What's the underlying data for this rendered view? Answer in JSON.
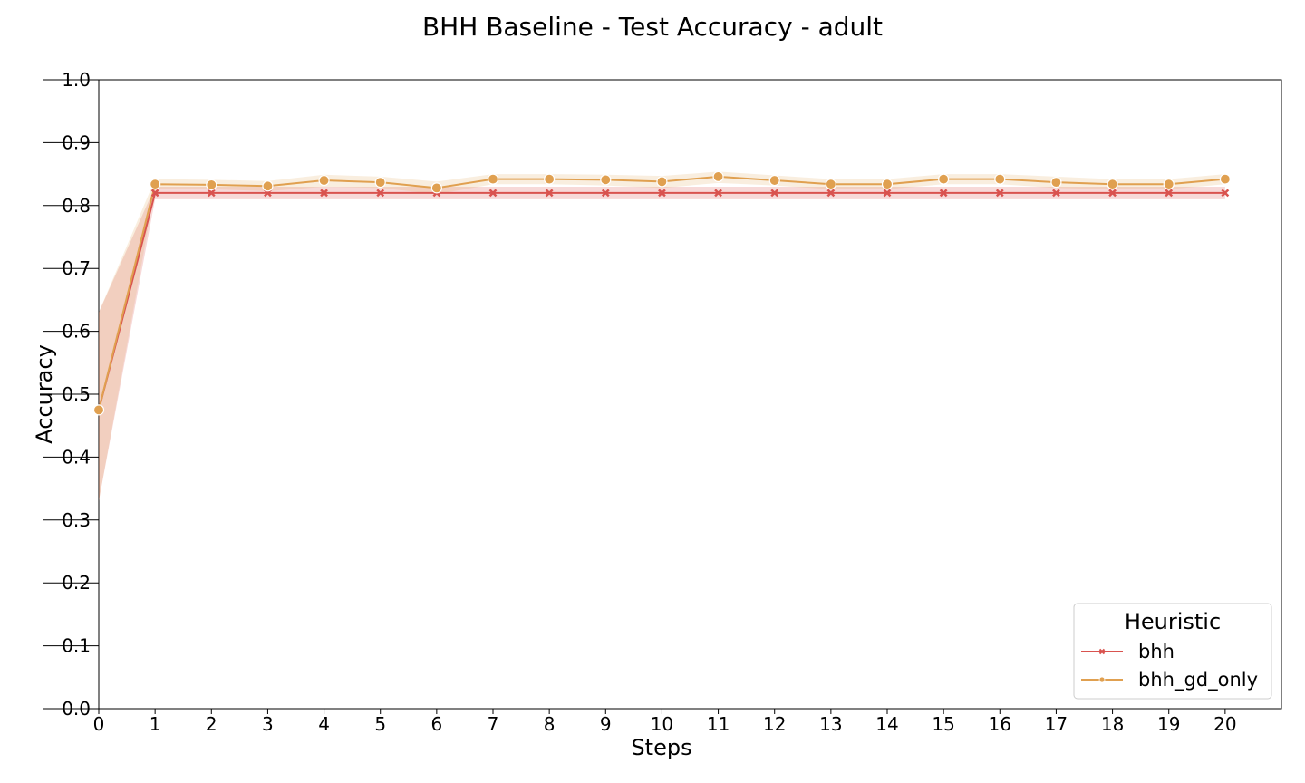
{
  "chart_data": {
    "type": "line",
    "title": "BHH Baseline - Test Accuracy - adult",
    "xlabel": "Steps",
    "ylabel": "Accuracy",
    "x": [
      0,
      1,
      2,
      3,
      4,
      5,
      6,
      7,
      8,
      9,
      10,
      11,
      12,
      13,
      14,
      15,
      16,
      17,
      18,
      19,
      20
    ],
    "xlim": [
      0,
      21
    ],
    "ylim": [
      0.0,
      1.0
    ],
    "x_ticks": [
      "0",
      "1",
      "2",
      "3",
      "4",
      "5",
      "6",
      "7",
      "8",
      "9",
      "10",
      "11",
      "12",
      "13",
      "14",
      "15",
      "16",
      "17",
      "18",
      "19",
      "20"
    ],
    "y_ticks": [
      "0.0",
      "0.1",
      "0.2",
      "0.3",
      "0.4",
      "0.5",
      "0.6",
      "0.7",
      "0.8",
      "0.9",
      "1.0"
    ],
    "grid": false,
    "legend_title": "Heuristic",
    "legend_position": "lower-right",
    "series": [
      {
        "name": "bhh",
        "color": "#d9534f",
        "marker": "x",
        "values": [
          0.475,
          0.82,
          0.82,
          0.82,
          0.82,
          0.82,
          0.82,
          0.82,
          0.82,
          0.82,
          0.82,
          0.82,
          0.82,
          0.82,
          0.82,
          0.82,
          0.82,
          0.82,
          0.82,
          0.82,
          0.82
        ],
        "ci_low": [
          0.33,
          0.81,
          0.81,
          0.81,
          0.81,
          0.81,
          0.81,
          0.81,
          0.81,
          0.81,
          0.81,
          0.81,
          0.81,
          0.81,
          0.81,
          0.81,
          0.81,
          0.81,
          0.81,
          0.81,
          0.81
        ],
        "ci_high": [
          0.63,
          0.83,
          0.83,
          0.83,
          0.83,
          0.83,
          0.83,
          0.83,
          0.83,
          0.83,
          0.83,
          0.83,
          0.83,
          0.83,
          0.83,
          0.83,
          0.83,
          0.83,
          0.83,
          0.83,
          0.83
        ]
      },
      {
        "name": "bhh_gd_only",
        "color": "#e0a050",
        "marker": "circle",
        "values": [
          0.475,
          0.834,
          0.833,
          0.831,
          0.84,
          0.837,
          0.828,
          0.842,
          0.842,
          0.841,
          0.838,
          0.846,
          0.84,
          0.834,
          0.834,
          0.842,
          0.842,
          0.837,
          0.834,
          0.834,
          0.842
        ],
        "ci_low": [
          0.33,
          0.826,
          0.826,
          0.823,
          0.83,
          0.828,
          0.818,
          0.834,
          0.834,
          0.832,
          0.828,
          0.836,
          0.832,
          0.826,
          0.826,
          0.834,
          0.834,
          0.828,
          0.826,
          0.826,
          0.834
        ],
        "ci_high": [
          0.63,
          0.842,
          0.841,
          0.839,
          0.849,
          0.846,
          0.838,
          0.85,
          0.85,
          0.849,
          0.847,
          0.854,
          0.848,
          0.842,
          0.842,
          0.85,
          0.85,
          0.846,
          0.842,
          0.842,
          0.85
        ]
      }
    ]
  }
}
